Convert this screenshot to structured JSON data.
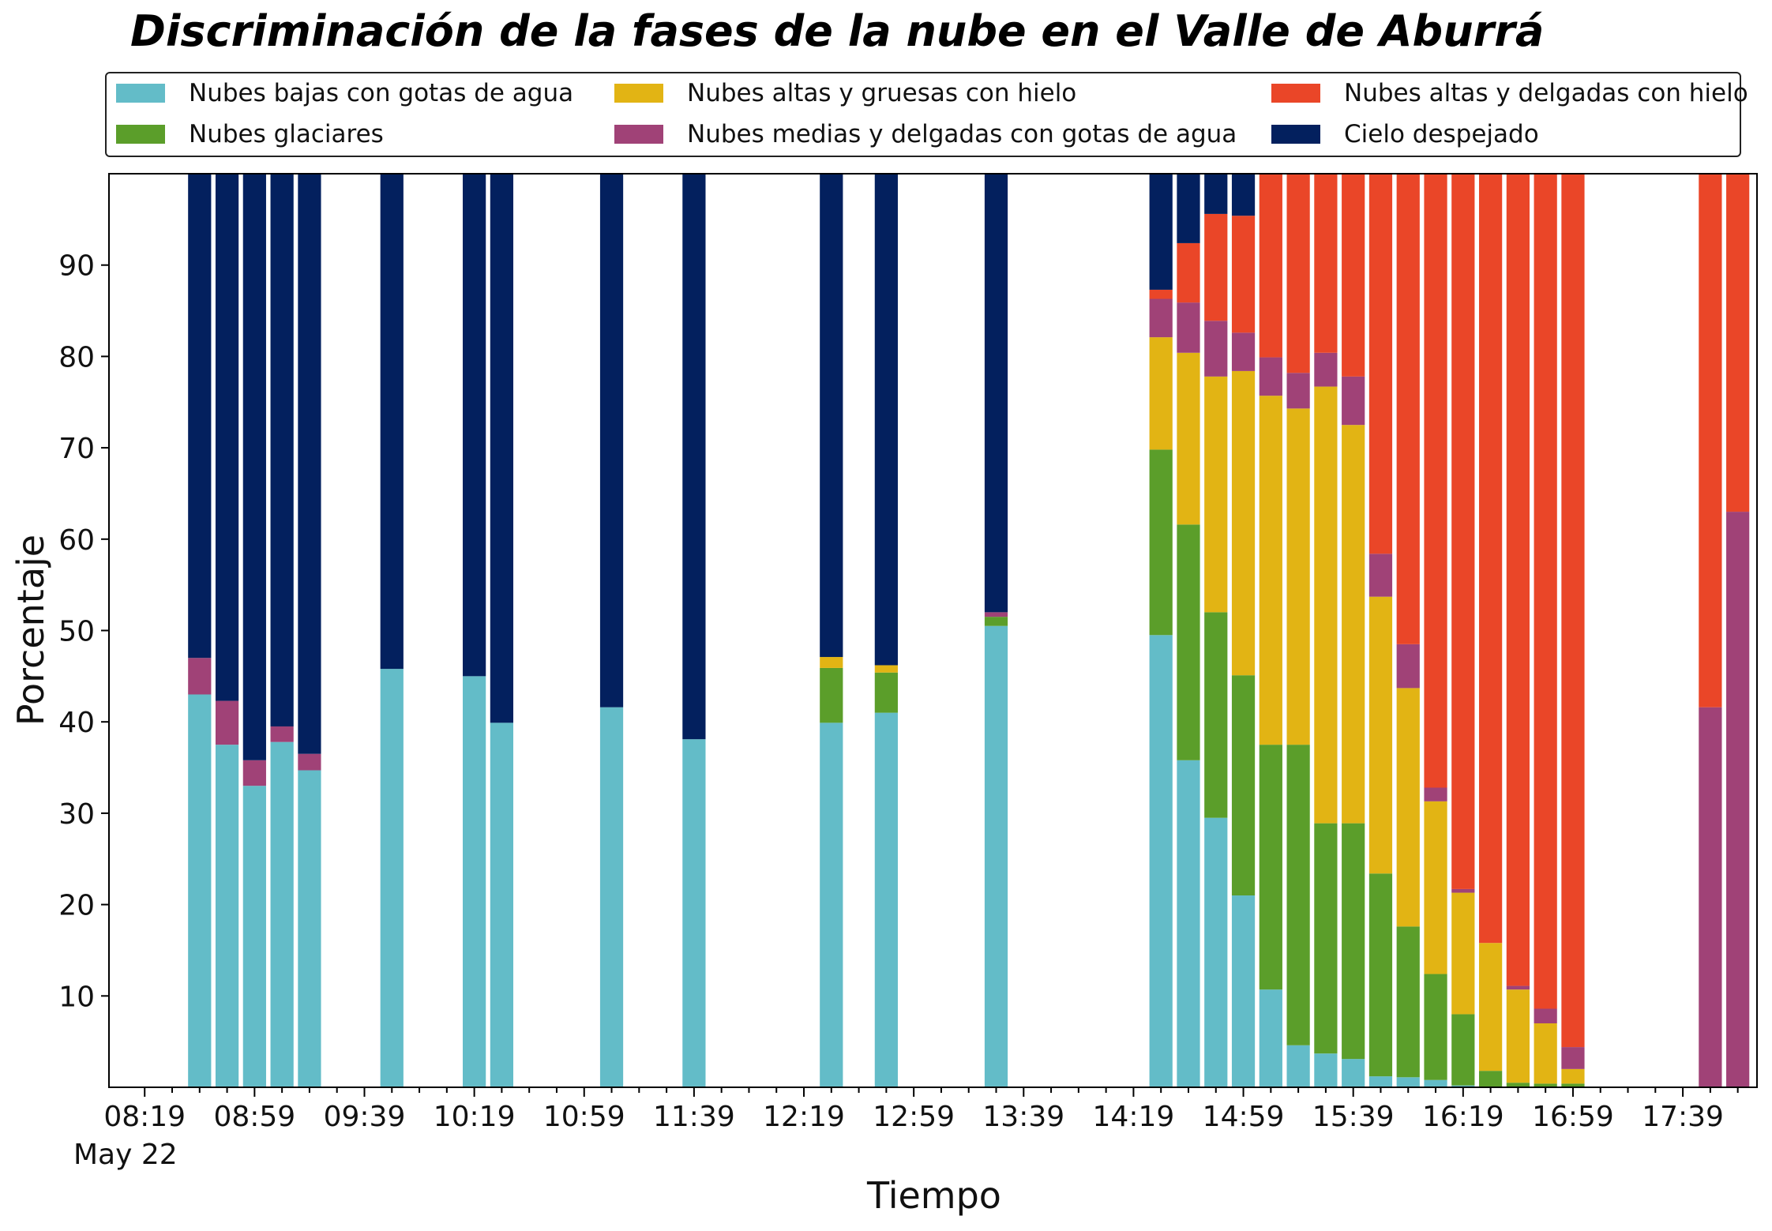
{
  "chart_data": {
    "type": "bar",
    "stacked": true,
    "title": "Discriminación de la fases de la nube en el Valle de Aburrá",
    "xlabel": "Tiempo",
    "ylabel": "Porcentaje",
    "ylim": [
      0,
      100
    ],
    "y_ticks": [
      "10",
      "20",
      "30",
      "40",
      "50",
      "60",
      "70",
      "80",
      "90"
    ],
    "x_tick_labels": [
      "08:19",
      "08:59",
      "09:39",
      "10:19",
      "10:59",
      "11:39",
      "12:19",
      "12:59",
      "13:39",
      "14:19",
      "14:59",
      "15:39",
      "16:19",
      "16:59",
      "17:39"
    ],
    "x_date_label": "May 22",
    "legend_position": "top",
    "colors": {
      "nubes_bajas": "#63bcc8",
      "glaciares": "#5b9e2a",
      "altas_gruesas": "#e2b414",
      "medias_delgadas": "#a04277",
      "altas_delgadas": "#ea4628",
      "despejado": "#03205e"
    },
    "series": [
      {
        "key": "nubes_bajas",
        "name": "Nubes bajas con gotas de agua"
      },
      {
        "key": "glaciares",
        "name": "Nubes glaciares"
      },
      {
        "key": "altas_gruesas",
        "name": "Nubes altas y gruesas con hielo"
      },
      {
        "key": "medias_delgadas",
        "name": "Nubes medias y delgadas con gotas de agua"
      },
      {
        "key": "altas_delgadas",
        "name": "Nubes altas y delgadas con hielo"
      },
      {
        "key": "despejado",
        "name": "Cielo despejado"
      }
    ],
    "bars": [
      {
        "time": "08:39",
        "values": [
          43,
          0,
          0,
          4,
          0,
          53
        ]
      },
      {
        "time": "08:49",
        "values": [
          37.5,
          0,
          0,
          4.8,
          0,
          57.7
        ]
      },
      {
        "time": "08:59",
        "values": [
          33,
          0,
          0,
          2.8,
          0,
          64.2
        ]
      },
      {
        "time": "09:09",
        "values": [
          37.8,
          0,
          0,
          1.7,
          0,
          60.5
        ]
      },
      {
        "time": "09:19",
        "values": [
          34.7,
          0,
          0,
          1.8,
          0,
          63.5
        ]
      },
      {
        "time": "09:49",
        "values": [
          45.8,
          0,
          0,
          0,
          0,
          54.2
        ]
      },
      {
        "time": "10:19",
        "values": [
          45,
          0,
          0,
          0,
          0,
          55
        ]
      },
      {
        "time": "10:29",
        "values": [
          39.9,
          0,
          0,
          0,
          0,
          60.1
        ]
      },
      {
        "time": "11:09",
        "values": [
          41.6,
          0,
          0,
          0,
          0,
          58.4
        ]
      },
      {
        "time": "11:39",
        "values": [
          38.1,
          0,
          0,
          0,
          0,
          61.9
        ]
      },
      {
        "time": "12:29",
        "values": [
          39.9,
          6,
          1.2,
          0,
          0,
          52.9
        ]
      },
      {
        "time": "12:49",
        "values": [
          41,
          4.4,
          0.8,
          0,
          0,
          53.8
        ]
      },
      {
        "time": "13:29",
        "values": [
          50.5,
          1,
          0,
          0.5,
          0,
          48
        ]
      },
      {
        "time": "14:29",
        "values": [
          49.5,
          20.3,
          12.3,
          4.2,
          1,
          12.7
        ]
      },
      {
        "time": "14:39",
        "values": [
          35.8,
          25.8,
          18.8,
          5.5,
          6.5,
          7.6
        ]
      },
      {
        "time": "14:49",
        "values": [
          29.5,
          22.5,
          25.8,
          6.1,
          11.7,
          4.4
        ]
      },
      {
        "time": "14:59",
        "values": [
          21,
          24.1,
          33.3,
          4.2,
          12.8,
          4.6
        ]
      },
      {
        "time": "15:09",
        "values": [
          10.7,
          26.8,
          38.2,
          4.2,
          20.1,
          0.5
        ]
      },
      {
        "time": "15:19",
        "values": [
          4.6,
          32.9,
          36.8,
          3.9,
          21.8,
          0.5
        ]
      },
      {
        "time": "15:29",
        "values": [
          3.7,
          25.2,
          47.8,
          3.7,
          19.6,
          0
        ]
      },
      {
        "time": "15:39",
        "values": [
          3.1,
          25.8,
          43.6,
          5.3,
          22.2,
          0
        ]
      },
      {
        "time": "15:49",
        "values": [
          1.2,
          22.2,
          30.3,
          4.7,
          41.6,
          0
        ]
      },
      {
        "time": "15:59",
        "values": [
          1.1,
          16.5,
          26.1,
          4.8,
          51.5,
          0
        ]
      },
      {
        "time": "16:09",
        "values": [
          0.8,
          11.6,
          18.9,
          1.5,
          67.2,
          0
        ]
      },
      {
        "time": "16:19",
        "values": [
          0.2,
          7.8,
          13.3,
          0.4,
          78.3,
          0
        ]
      },
      {
        "time": "16:29",
        "values": [
          0,
          1.8,
          14,
          0,
          84.2,
          0
        ]
      },
      {
        "time": "16:39",
        "values": [
          0,
          0.5,
          10.2,
          0.4,
          88.9,
          0
        ]
      },
      {
        "time": "16:49",
        "values": [
          0,
          0.4,
          6.6,
          1.6,
          91.4,
          0
        ]
      },
      {
        "time": "16:59",
        "values": [
          0,
          0.4,
          1.6,
          2.4,
          95.6,
          0
        ]
      },
      {
        "time": "17:49",
        "values": [
          0,
          0,
          0,
          41.6,
          58.4,
          0
        ]
      },
      {
        "time": "17:59",
        "values": [
          0,
          0,
          0,
          63,
          37,
          0
        ]
      }
    ]
  }
}
